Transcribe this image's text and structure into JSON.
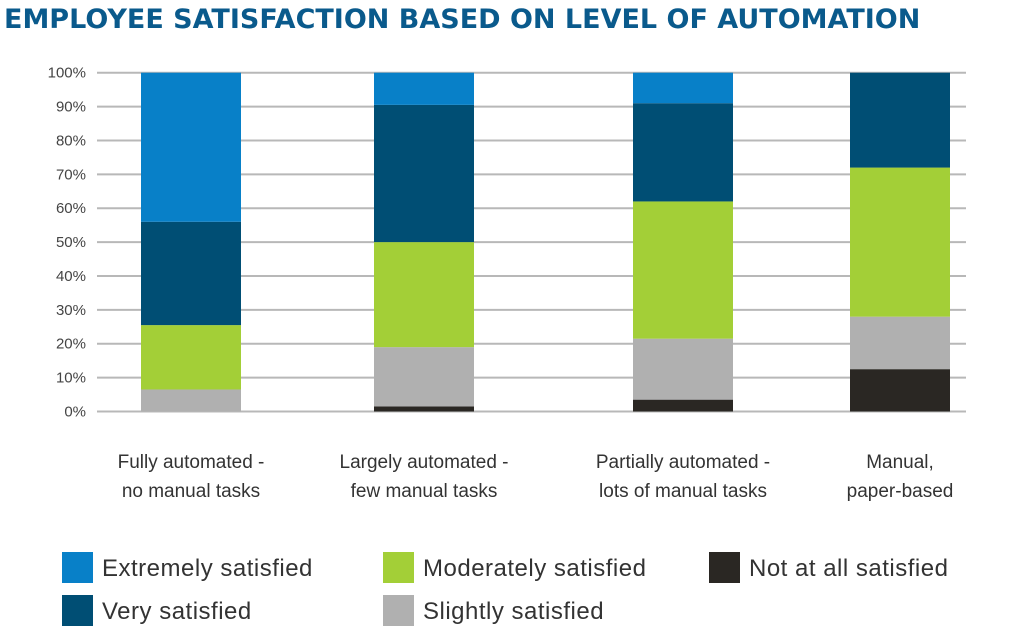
{
  "chart_data": {
    "type": "bar",
    "stacked": true,
    "title": "EMPLOYEE SATISFACTION BASED ON LEVEL OF AUTOMATION",
    "xlabel": "",
    "ylabel": "",
    "ylim": [
      0,
      100
    ],
    "yticks": [
      "0%",
      "10%",
      "20%",
      "30%",
      "40%",
      "50%",
      "60%",
      "70%",
      "80%",
      "90%",
      "100%"
    ],
    "grid": true,
    "legend_position": "bottom",
    "categories": [
      [
        "Fully automated -",
        "no manual tasks"
      ],
      [
        "Largely automated -",
        "few manual tasks"
      ],
      [
        "Partially automated -",
        "lots of manual tasks"
      ],
      [
        "Manual,",
        "paper-based"
      ]
    ],
    "series": [
      {
        "name": "Not at all satisfied",
        "color": "#2a2723",
        "values": [
          0,
          1.5,
          3.5,
          12.5
        ]
      },
      {
        "name": "Slightly satisfied",
        "color": "#b0b0b0",
        "values": [
          6.5,
          17.5,
          18,
          15.5
        ]
      },
      {
        "name": "Moderately satisfied",
        "color": "#a3cf37",
        "values": [
          19,
          31,
          40.5,
          44
        ]
      },
      {
        "name": "Very satisfied",
        "color": "#004e74",
        "values": [
          30.5,
          40.5,
          29,
          28
        ]
      },
      {
        "name": "Extremely satisfied",
        "color": "#0880c8",
        "values": [
          44,
          9.5,
          9,
          0
        ]
      }
    ]
  }
}
